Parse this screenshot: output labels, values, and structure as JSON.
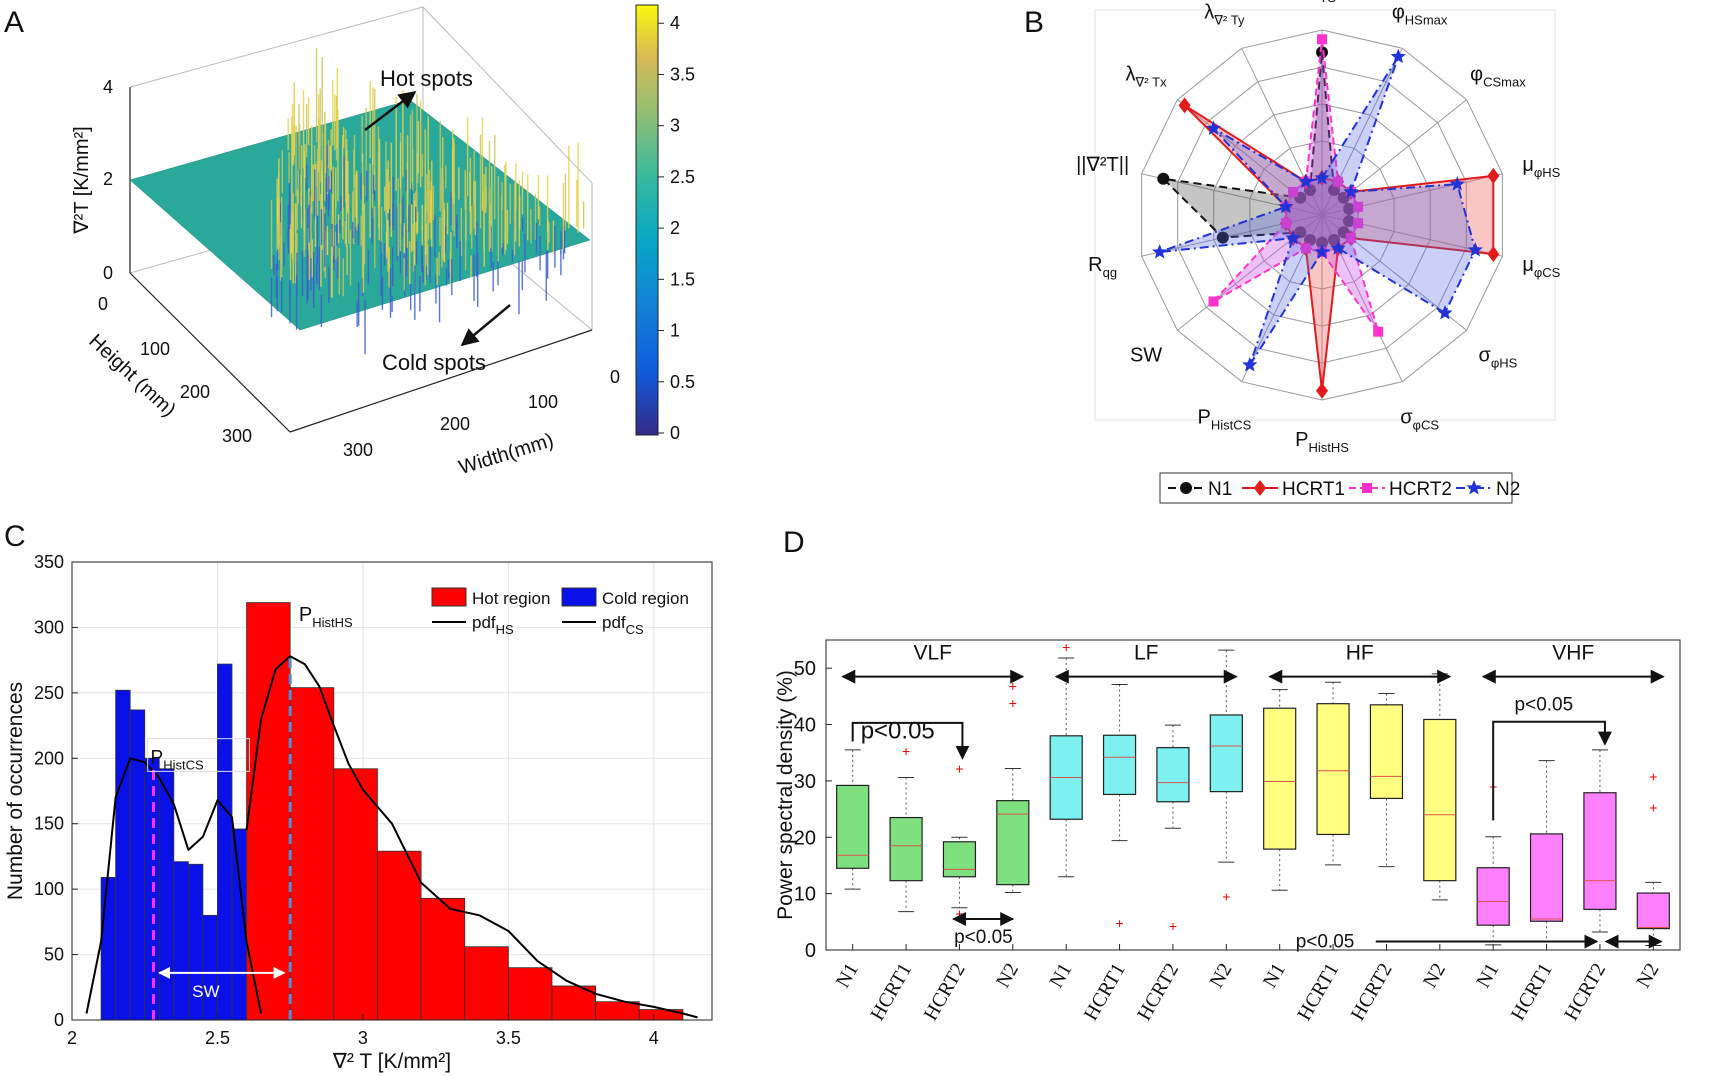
{
  "panels": {
    "A": "A",
    "B": "B",
    "C": "C",
    "D": "D"
  },
  "panel_a": {
    "z_label": "∇²T [K/mm²]",
    "x_label": "Height (mm)",
    "y_label": "Width(mm)",
    "z_ticks": [
      "0",
      "2",
      "4"
    ],
    "height_ticks": [
      "0",
      "100",
      "200",
      "300"
    ],
    "width_ticks": [
      "0",
      "100",
      "200",
      "300"
    ],
    "colorbar_ticks": [
      "0",
      "0.5",
      "1",
      "1.5",
      "2",
      "2.5",
      "3",
      "3.5",
      "4"
    ],
    "hot_spots": "Hot spots",
    "cold_spots": "Cold spots",
    "colors": {
      "flat": "#2aa89a",
      "peak": "#e8d34a",
      "low": "#3b3f9a"
    }
  },
  "chart_data": [
    {
      "panel": "B",
      "type": "radar",
      "axes": [
        "μTS",
        "φHSmax",
        "φCSmax",
        "μφHS",
        "μφCS",
        "σφHS",
        "σφCS",
        "PHistHS",
        "PHistCS",
        "SW",
        "Rqg",
        "||∇²T||",
        "λ∇²Tx",
        "λ∇²Ty"
      ],
      "axis_labels": [
        {
          "main": "μ",
          "sub": "TS"
        },
        {
          "main": "φ",
          "sub": "HSmax"
        },
        {
          "main": "φ",
          "sub": "CSmax"
        },
        {
          "main": "μ",
          "sub": "φHS"
        },
        {
          "main": "μ",
          "sub": "φCS"
        },
        {
          "main": "σ",
          "sub": "φHS"
        },
        {
          "main": "σ",
          "sub": "φCS"
        },
        {
          "main": "P",
          "sub": "HistHS"
        },
        {
          "main": "P",
          "sub": "HistCS"
        },
        {
          "main": "SW",
          "sub": ""
        },
        {
          "main": "R",
          "sub": "qg"
        },
        {
          "main": "||∇²T||",
          "sub": ""
        },
        {
          "main": "λ",
          "sub": "∇² Tx"
        },
        {
          "main": "λ",
          "sub": "∇² Ty"
        }
      ],
      "series": [
        {
          "name": "N1",
          "color": "#111111",
          "values": [
            0.88,
            0.15,
            0.15,
            0.15,
            0.15,
            0.15,
            0.15,
            0.15,
            0.15,
            0.15,
            0.55,
            0.88,
            0.15,
            0.15
          ]
        },
        {
          "name": "HCRT1",
          "color": "#e31a1c",
          "values": [
            0.2,
            0.2,
            0.2,
            0.95,
            0.95,
            0.2,
            0.2,
            0.95,
            0.2,
            0.2,
            0.2,
            0.2,
            0.95,
            0.2
          ]
        },
        {
          "name": "HCRT2",
          "color": "#ff33cc",
          "values": [
            0.95,
            0.2,
            0.2,
            0.2,
            0.2,
            0.2,
            0.7,
            0.2,
            0.2,
            0.75,
            0.2,
            0.2,
            0.2,
            0.2
          ]
        },
        {
          "name": "N2",
          "color": "#1f33d6",
          "values": [
            0.2,
            0.95,
            0.2,
            0.75,
            0.85,
            0.85,
            0.2,
            0.2,
            0.9,
            0.2,
            0.9,
            0.2,
            0.75,
            0.2
          ]
        }
      ],
      "legend": "bottom"
    },
    {
      "panel": "C",
      "type": "bar",
      "xlabel": "∇² T [K/mm²]",
      "ylabel": "Number of occurrences",
      "xlim": [
        2,
        4.2
      ],
      "ylim": [
        0,
        350
      ],
      "x_ticks": [
        2,
        2.5,
        3,
        3.5,
        4
      ],
      "y_ticks": [
        0,
        50,
        100,
        150,
        200,
        250,
        300,
        350
      ],
      "grid": true,
      "legend": "top-right",
      "legend_entries": [
        "Hot region",
        "Cold region",
        "pdf_HS",
        "pdf_CS"
      ],
      "series": [
        {
          "name": "Cold region",
          "color": "#0a10e8",
          "bin_width": 0.05,
          "x": [
            2.125,
            2.175,
            2.225,
            2.275,
            2.325,
            2.375,
            2.425,
            2.475,
            2.525,
            2.575
          ],
          "values": [
            109,
            252,
            237,
            200,
            192,
            121,
            119,
            80,
            272,
            146
          ]
        },
        {
          "name": "Hot region",
          "color": "#ff0000",
          "bin_width": 0.15,
          "x": [
            2.675,
            2.825,
            2.975,
            3.125,
            3.275,
            3.425,
            3.575,
            3.725,
            3.875,
            4.025
          ],
          "values": [
            319,
            254,
            192,
            129,
            93,
            56,
            40,
            26,
            14,
            8
          ]
        },
        {
          "name": "pdf_HS",
          "color": "#000000",
          "x": [
            2.6,
            2.65,
            2.7,
            2.75,
            2.8,
            2.85,
            2.9,
            2.95,
            3.0,
            3.1,
            3.2,
            3.3,
            3.4,
            3.5,
            3.6,
            3.7,
            3.8,
            3.9,
            4.0,
            4.1,
            4.15
          ],
          "values": [
            145,
            230,
            268,
            278,
            272,
            255,
            225,
            196,
            176,
            150,
            105,
            85,
            80,
            68,
            45,
            30,
            20,
            14,
            10,
            5,
            2
          ]
        },
        {
          "name": "pdf_CS",
          "color": "#000000",
          "x": [
            2.05,
            2.1,
            2.15,
            2.2,
            2.25,
            2.3,
            2.35,
            2.4,
            2.45,
            2.5,
            2.55,
            2.6,
            2.65
          ],
          "values": [
            5,
            60,
            170,
            200,
            197,
            185,
            165,
            130,
            140,
            168,
            155,
            60,
            5
          ]
        }
      ],
      "annotations": [
        {
          "text": "P",
          "sub": "HistHS",
          "x": 2.75,
          "y": 300
        },
        {
          "text": "P",
          "sub": "HistCS",
          "x": 2.3,
          "y": 200
        },
        {
          "text": "SW",
          "x": 2.5,
          "y": 36
        }
      ]
    },
    {
      "panel": "D",
      "type": "box",
      "ylabel": "Power spectral density (%)",
      "ylim": [
        0,
        55
      ],
      "y_ticks": [
        0,
        10,
        20,
        30,
        40,
        50
      ],
      "categories": [
        "N1",
        "HCRT1",
        "HCRT2",
        "N2",
        "N1",
        "HCRT1",
        "HCRT2",
        "N2",
        "N1",
        "HCRT1",
        "HCRT2",
        "N2",
        "N1",
        "HCRT1",
        "HCRT2",
        "N2"
      ],
      "bands": [
        {
          "name": "VLF",
          "color": "#7fe07f"
        },
        {
          "name": "LF",
          "color": "#7ff0f0"
        },
        {
          "name": "HF",
          "color": "#ffff80"
        },
        {
          "name": "VHF",
          "color": "#ff80ff"
        }
      ],
      "boxes": [
        {
          "q1": 14.5,
          "median": 16.8,
          "q3": 29.2,
          "min": 10.8,
          "max": 35.5,
          "outliers": []
        },
        {
          "q1": 12.3,
          "median": 18.5,
          "q3": 23.5,
          "min": 6.8,
          "max": 30.6,
          "outliers": [
            35.3
          ]
        },
        {
          "q1": 13.0,
          "median": 14.3,
          "q3": 19.2,
          "min": 7.5,
          "max": 20.0,
          "outliers": [
            32.2,
            6.5
          ]
        },
        {
          "q1": 11.6,
          "median": 24.1,
          "q3": 26.5,
          "min": 10.2,
          "max": 32.2,
          "outliers": [
            43.8,
            46.8
          ]
        },
        {
          "q1": 23.2,
          "median": 30.6,
          "q3": 38.0,
          "min": 13.0,
          "max": 51.8,
          "outliers": [
            53.8
          ]
        },
        {
          "q1": 27.6,
          "median": 34.2,
          "q3": 38.1,
          "min": 19.4,
          "max": 47.1,
          "outliers": [
            4.8
          ]
        },
        {
          "q1": 26.3,
          "median": 29.7,
          "q3": 35.9,
          "min": 21.6,
          "max": 39.9,
          "outliers": [
            4.3
          ]
        },
        {
          "q1": 28.1,
          "median": 36.2,
          "q3": 41.7,
          "min": 15.6,
          "max": 53.2,
          "outliers": [
            9.5
          ]
        },
        {
          "q1": 17.9,
          "median": 29.9,
          "q3": 42.9,
          "min": 10.6,
          "max": 46.2,
          "outliers": []
        },
        {
          "q1": 20.5,
          "median": 31.8,
          "q3": 43.7,
          "min": 15.1,
          "max": 47.5,
          "outliers": []
        },
        {
          "q1": 26.9,
          "median": 30.8,
          "q3": 43.5,
          "min": 14.8,
          "max": 45.5,
          "outliers": []
        },
        {
          "q1": 12.3,
          "median": 24.0,
          "q3": 40.9,
          "min": 8.9,
          "max": 49.0,
          "outliers": []
        },
        {
          "q1": 4.4,
          "median": 8.6,
          "q3": 14.6,
          "min": 0.9,
          "max": 20.1,
          "outliers": [
            29.0
          ]
        },
        {
          "q1": 5.1,
          "median": 5.5,
          "q3": 20.6,
          "min": 1.5,
          "max": 33.6,
          "outliers": []
        },
        {
          "q1": 7.2,
          "median": 12.3,
          "q3": 27.9,
          "min": 3.2,
          "max": 35.5,
          "outliers": []
        },
        {
          "q1": 3.8,
          "median": 4.0,
          "q3": 10.1,
          "min": 0.8,
          "max": 12.0,
          "outliers": [
            25.3,
            30.8
          ]
        }
      ],
      "annotations": [
        "p<0.05",
        "p<0.05",
        "p<0.05",
        "p<0.05"
      ]
    }
  ]
}
